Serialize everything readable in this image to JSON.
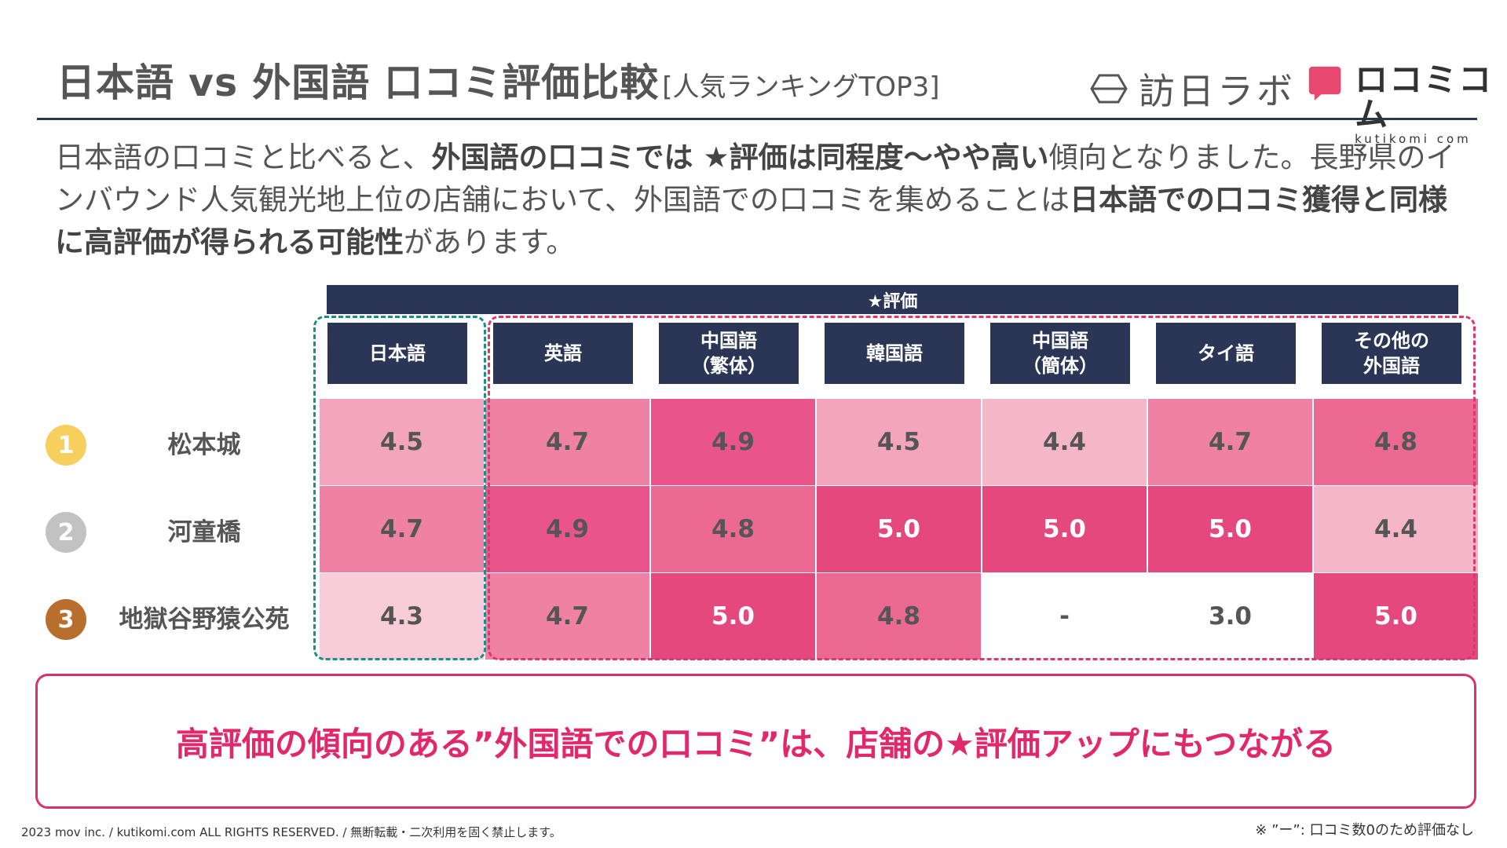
{
  "title": {
    "main": "日本語 vs 外国語 口コミ評価比較",
    "sub": "[人気ランキングTOP3]"
  },
  "logos": {
    "houmon": "訪日ラボ",
    "kutikomi_main": "ロコミコム",
    "kutikomi_sub": "kutikomi com"
  },
  "description": {
    "t1": "日本語の口コミと比べると、",
    "b1": "外国語の口コミでは ★評価は同程度〜やや高い",
    "t2": "傾向となりました。長野県のインバウンド人気観光地上位の店舗において、外国語での口コミを集めることは",
    "b2": "日本語での口コミ獲得と同様に高評価が得られる可能性",
    "t3": "があります。"
  },
  "table": {
    "star_header": "★評価",
    "columns": [
      "日本語",
      "英語",
      "中国語\n（繁体）",
      "韓国語",
      "中国語\n（簡体）",
      "タイ語",
      "その他の\n外国語"
    ],
    "rows": [
      {
        "rank": "1",
        "name": "松本城",
        "values": [
          "4.5",
          "4.7",
          "4.9",
          "4.5",
          "4.4",
          "4.7",
          "4.8"
        ]
      },
      {
        "rank": "2",
        "name": "河童橋",
        "values": [
          "4.7",
          "4.9",
          "4.8",
          "5.0",
          "5.0",
          "5.0",
          "4.4"
        ]
      },
      {
        "rank": "3",
        "name": "地獄谷野猿公苑",
        "values": [
          "4.3",
          "4.7",
          "5.0",
          "4.8",
          "-",
          "3.0",
          "5.0"
        ]
      }
    ]
  },
  "colors": {
    "navy": "#2b3656",
    "gold": "#f6cf5c",
    "silver": "#c2c2c2",
    "bronze": "#b86f2d",
    "accent": "#e0286b"
  },
  "callout": "高評価の傾向のある”外国語での口コミ”は、店舗の★評価アップにもつながる",
  "footer": {
    "copyright": "2023 mov inc. / kutikomi.com ALL RIGHTS RESERVED. / 無断転載・二次利用を固く禁止します。",
    "note": "※ ”ー”: 口コミ数0のため評価なし"
  }
}
